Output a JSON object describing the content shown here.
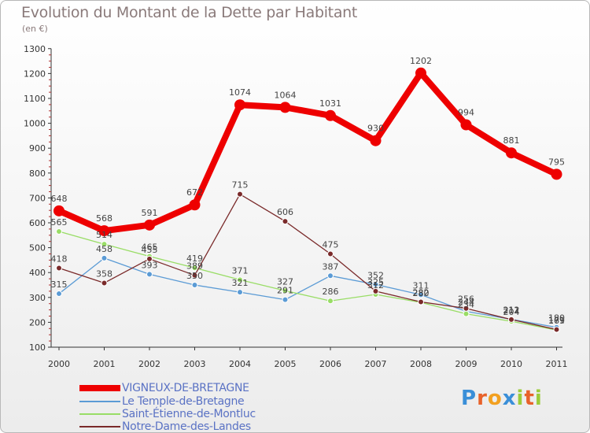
{
  "chart_data": {
    "type": "line",
    "title": "Evolution du Montant de la Dette par Habitant",
    "subtitle": "(en €)",
    "categories": [
      "2000",
      "2001",
      "2002",
      "2003",
      "2004",
      "2005",
      "2006",
      "2007",
      "2008",
      "2009",
      "2010",
      "2011"
    ],
    "ylim": [
      100,
      1300
    ],
    "yticks": [
      100,
      200,
      300,
      400,
      500,
      600,
      700,
      800,
      900,
      1000,
      1100,
      1200,
      1300
    ],
    "grid": false,
    "legend_position": "bottom-left",
    "series": [
      {
        "name": "VIGNEUX-DE-BRETAGNE",
        "color": "#ee0000",
        "values": [
          648,
          568,
          591,
          672,
          1074,
          1064,
          1031,
          930,
          1202,
          994,
          881,
          795
        ],
        "labels": [
          "648",
          "568",
          "591",
          "672",
          "1074",
          "1064",
          "1031",
          "930",
          "1202",
          "994",
          "881",
          "795"
        ]
      },
      {
        "name": "Le Temple-de-Bretagne",
        "color": "#5b9bd5",
        "values": [
          315,
          458,
          393,
          350,
          321,
          291,
          387,
          352,
          311,
          244,
          212,
          180
        ],
        "labels": [
          "315",
          "458",
          "393",
          "350",
          "321",
          "291",
          "387",
          "352",
          "311",
          "244",
          "212",
          "180"
        ]
      },
      {
        "name": "Saint-Étienne-de-Montluc",
        "color": "#99dd66",
        "values": [
          565,
          514,
          465,
          419,
          371,
          327,
          286,
          312,
          280,
          234,
          204,
          169
        ],
        "labels": [
          "565",
          "514",
          "465",
          "419",
          "371",
          "327",
          "286",
          "312",
          "280",
          "234",
          "204",
          "169"
        ]
      },
      {
        "name": "Notre-Dame-des-Landes",
        "color": "#7a2a2a",
        "values": [
          418,
          358,
          455,
          389,
          715,
          606,
          475,
          325,
          282,
          256,
          211,
          171
        ],
        "labels": [
          "418",
          "358",
          "455",
          "389",
          "715",
          "606",
          "475",
          "325",
          "282",
          "256",
          "211",
          "171"
        ]
      }
    ]
  },
  "logo": {
    "letters": [
      {
        "char": "P",
        "color": "#3a8fd8"
      },
      {
        "char": "r",
        "color": "#e8622a"
      },
      {
        "char": "o",
        "color": "#f2a020"
      },
      {
        "char": "x",
        "color": "#3a8fd8"
      },
      {
        "char": "i",
        "color": "#9ccc3a"
      },
      {
        "char": "t",
        "color": "#e8622a"
      },
      {
        "char": "i",
        "color": "#9ccc3a"
      }
    ]
  }
}
